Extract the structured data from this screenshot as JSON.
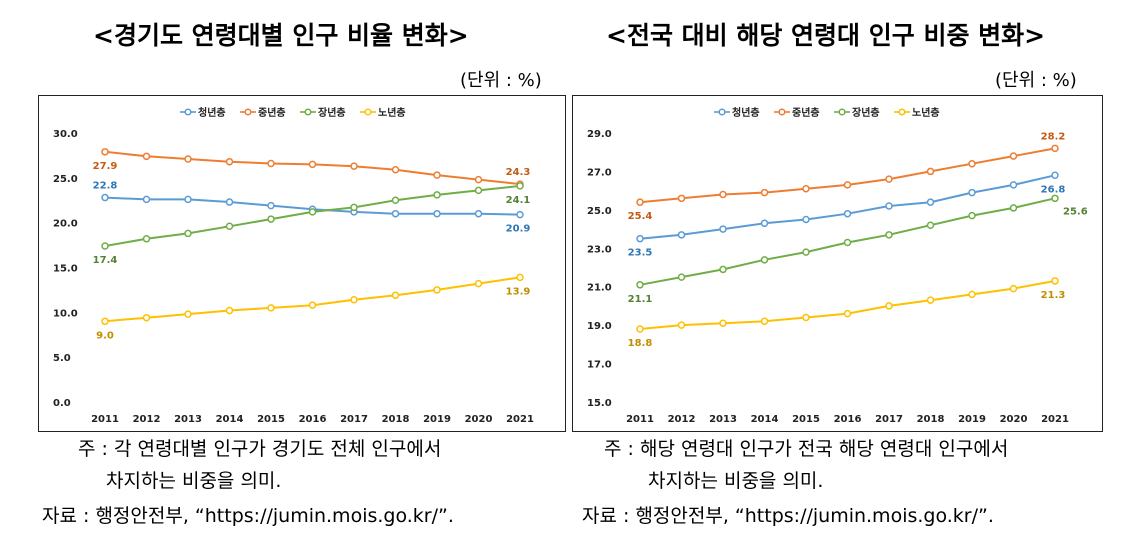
{
  "left": {
    "title": "<경기도 연령대별 인구 비율 변화>",
    "unit": "(단위 : %)",
    "note_line1": "주 : 각 연령대별 인구가 경기도 전체 인구에서",
    "note_line2": "차지하는 비중을 의미.",
    "source": "자료 : 행정안전부, “https://jumin.mois.go.kr/”."
  },
  "right": {
    "title": "<전국 대비 해당 연령대 인구 비중 변화>",
    "unit": "(단위 : %)",
    "note_line1": "주 : 해당 연령대 인구가 전국 해당 연령대 인구에서",
    "note_line2": "차지하는 비중을 의미.",
    "source": "자료 : 행정안전부, “https://jumin.mois.go.kr/”."
  },
  "chart_data": [
    {
      "type": "line",
      "title": "<경기도 연령대별 인구 비율 변화>",
      "categories": [
        "2011",
        "2012",
        "2013",
        "2014",
        "2015",
        "2016",
        "2017",
        "2018",
        "2019",
        "2020",
        "2021"
      ],
      "ylim": [
        0,
        30
      ],
      "yticks": [
        "0.0",
        "5.0",
        "10.0",
        "15.0",
        "20.0",
        "25.0",
        "30.0"
      ],
      "ytick_values": [
        0,
        5,
        10,
        15,
        20,
        25,
        30
      ],
      "legend_position": "top",
      "series": [
        {
          "name": "청년층",
          "color": "#5b9bd5",
          "label_color": "#2e75b6",
          "values": [
            22.8,
            22.6,
            22.6,
            22.3,
            21.9,
            21.5,
            21.2,
            21.0,
            21.0,
            21.0,
            20.9
          ],
          "start_label": "22.8",
          "end_label": "20.9",
          "start_pos": "above",
          "end_pos": "below"
        },
        {
          "name": "중년층",
          "color": "#ed7d31",
          "label_color": "#c55a11",
          "values": [
            27.9,
            27.4,
            27.1,
            26.8,
            26.6,
            26.5,
            26.3,
            25.9,
            25.3,
            24.8,
            24.3
          ],
          "start_label": "27.9",
          "end_label": "24.3",
          "start_pos": "below",
          "end_pos": "above"
        },
        {
          "name": "장년층",
          "color": "#70ad47",
          "label_color": "#548235",
          "values": [
            17.4,
            18.2,
            18.8,
            19.6,
            20.4,
            21.2,
            21.7,
            22.5,
            23.1,
            23.6,
            24.1
          ],
          "start_label": "17.4",
          "end_label": "24.1",
          "start_pos": "below",
          "end_pos": "below"
        },
        {
          "name": "노년층",
          "color": "#ffc000",
          "label_color": "#bf8f00",
          "values": [
            9.0,
            9.4,
            9.8,
            10.2,
            10.5,
            10.8,
            11.4,
            11.9,
            12.5,
            13.2,
            13.9
          ],
          "start_label": "9.0",
          "end_label": "13.9",
          "start_pos": "below",
          "end_pos": "below"
        }
      ]
    },
    {
      "type": "line",
      "title": "<전국 대비 해당 연령대 인구 비중 변화>",
      "categories": [
        "2011",
        "2012",
        "2013",
        "2014",
        "2015",
        "2016",
        "2017",
        "2018",
        "2019",
        "2020",
        "2021"
      ],
      "ylim": [
        15,
        29
      ],
      "yticks": [
        "15.0",
        "17.0",
        "19.0",
        "21.0",
        "23.0",
        "25.0",
        "27.0",
        "29.0"
      ],
      "ytick_values": [
        15,
        17,
        19,
        21,
        23,
        25,
        27,
        29
      ],
      "legend_position": "top",
      "series": [
        {
          "name": "청년층",
          "color": "#5b9bd5",
          "label_color": "#2e75b6",
          "values": [
            23.5,
            23.7,
            24.0,
            24.3,
            24.5,
            24.8,
            25.2,
            25.4,
            25.9,
            26.3,
            26.8
          ],
          "start_label": "23.5",
          "end_label": "26.8",
          "start_pos": "below",
          "end_pos": "below"
        },
        {
          "name": "중년층",
          "color": "#ed7d31",
          "label_color": "#c55a11",
          "values": [
            25.4,
            25.6,
            25.8,
            25.9,
            26.1,
            26.3,
            26.6,
            27.0,
            27.4,
            27.8,
            28.2
          ],
          "start_label": "25.4",
          "end_label": "28.2",
          "start_pos": "below",
          "end_pos": "above"
        },
        {
          "name": "장년층",
          "color": "#70ad47",
          "label_color": "#548235",
          "values": [
            21.1,
            21.5,
            21.9,
            22.4,
            22.8,
            23.3,
            23.7,
            24.2,
            24.7,
            25.1,
            25.6
          ],
          "start_label": "21.1",
          "end_label": "25.6",
          "start_pos": "below",
          "end_pos": "right"
        },
        {
          "name": "노년층",
          "color": "#ffc000",
          "label_color": "#bf8f00",
          "values": [
            18.8,
            19.0,
            19.1,
            19.2,
            19.4,
            19.6,
            20.0,
            20.3,
            20.6,
            20.9,
            21.3
          ],
          "start_label": "18.8",
          "end_label": "21.3",
          "start_pos": "below",
          "end_pos": "below"
        }
      ]
    }
  ]
}
